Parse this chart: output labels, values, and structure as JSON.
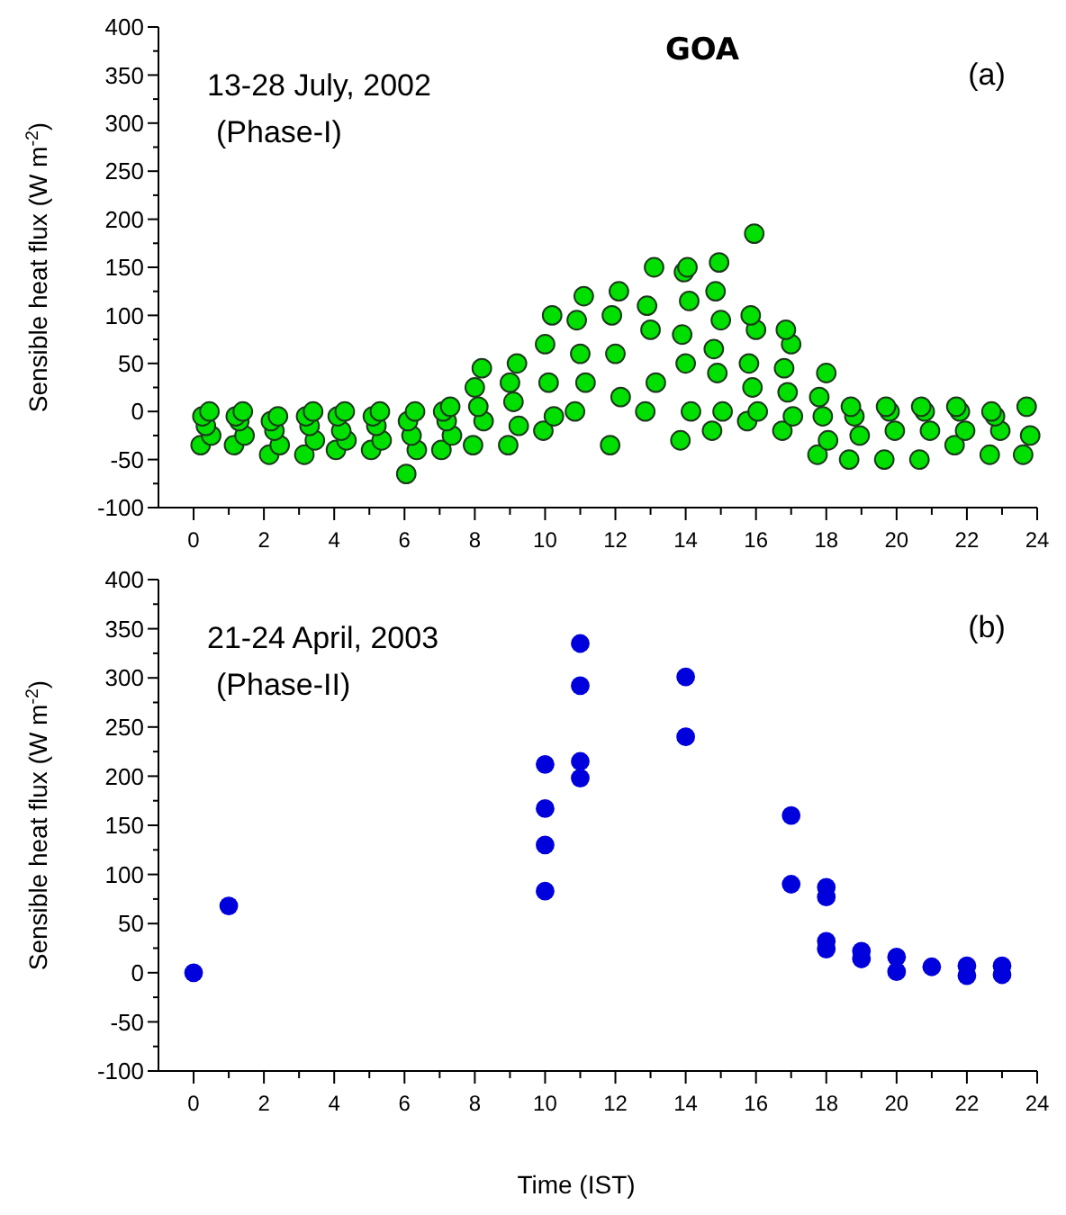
{
  "chart_data": [
    {
      "type": "scatter",
      "title": "GOA",
      "ylabel": "Sensible heat flux (W m$^{-2}$)",
      "annotations": [
        "13-28 July, 2002",
        "(Phase-I)",
        "(a)"
      ],
      "marker": "circle",
      "grid": false,
      "xlim": [
        -1,
        24
      ],
      "xticks": [
        0,
        {
          "value": 1,
          "label": null
        },
        2,
        {
          "value": 3,
          "label": null
        },
        4,
        {
          "value": 5,
          "label": null
        },
        6,
        {
          "value": 7,
          "label": null
        },
        8,
        {
          "value": 9,
          "label": null
        },
        10,
        {
          "value": 11,
          "label": null
        },
        12,
        {
          "value": 13,
          "label": null
        },
        14,
        {
          "value": 15,
          "label": null
        },
        16,
        {
          "value": 17,
          "label": null
        },
        18,
        {
          "value": 19,
          "label": null
        },
        20,
        {
          "value": 21,
          "label": null
        },
        22,
        {
          "value": 23,
          "label": null
        },
        24
      ],
      "ylim": [
        -100,
        400
      ],
      "yticks": [
        -100,
        {
          "value": -75,
          "label": null
        },
        -50,
        {
          "value": -25,
          "label": null
        },
        0,
        {
          "value": 25,
          "label": null
        },
        50,
        {
          "value": 75,
          "label": null
        },
        100,
        {
          "value": 125,
          "label": null
        },
        150,
        {
          "value": 175,
          "label": null
        },
        200,
        {
          "value": 225,
          "label": null
        },
        250,
        {
          "value": 275,
          "label": null
        },
        300,
        {
          "value": 325,
          "label": null
        },
        350,
        {
          "value": 375,
          "label": null
        },
        400
      ],
      "series": [
        {
          "color": "#00e000",
          "x": [
            0.2,
            0.5,
            0.35,
            0.25,
            0.45,
            1.15,
            1.45,
            1.3,
            1.2,
            1.4,
            2.15,
            2.45,
            2.3,
            2.2,
            2.4,
            3.15,
            3.45,
            3.3,
            3.2,
            3.4,
            4.05,
            4.35,
            4.2,
            4.1,
            4.3,
            5.05,
            5.35,
            5.2,
            5.1,
            5.3,
            6.05,
            6.35,
            6.2,
            6.1,
            6.3,
            7.05,
            7.35,
            7.2,
            7.1,
            7.3,
            7.95,
            8.25,
            8.1,
            8.0,
            8.2,
            8.95,
            9.25,
            9.1,
            9.0,
            9.2,
            9.95,
            10.25,
            10.1,
            10.0,
            10.2,
            10.85,
            11.15,
            11.0,
            10.9,
            11.1,
            11.85,
            12.15,
            12.0,
            11.9,
            12.1,
            12.85,
            13.15,
            13.0,
            12.9,
            13.1,
            13.85,
            14.15,
            14.0,
            13.9,
            14.1,
            13.95,
            14.05,
            14.75,
            15.05,
            14.9,
            14.8,
            15.0,
            14.85,
            14.95,
            15.75,
            16.05,
            15.9,
            15.8,
            16.0,
            15.85,
            15.95,
            16.75,
            17.05,
            16.9,
            16.8,
            17.0,
            16.85,
            17.75,
            18.05,
            17.9,
            17.8,
            18.0,
            18.65,
            18.95,
            18.8,
            18.7,
            19.65,
            19.95,
            19.8,
            19.7,
            20.65,
            20.95,
            20.8,
            20.7,
            21.65,
            21.95,
            21.8,
            21.7,
            22.65,
            22.95,
            22.8,
            22.7,
            23.6,
            23.8,
            23.7
          ],
          "values": [
            -35,
            -25,
            -15,
            -5,
            0,
            -35,
            -25,
            -10,
            -5,
            0,
            -45,
            -35,
            -20,
            -10,
            -5,
            -45,
            -30,
            -15,
            -5,
            0,
            -40,
            -30,
            -20,
            -5,
            0,
            -40,
            -30,
            -15,
            -5,
            0,
            -65,
            -40,
            -25,
            -10,
            0,
            -40,
            -25,
            -10,
            0,
            5,
            -35,
            -10,
            5,
            25,
            45,
            -35,
            -15,
            10,
            30,
            50,
            -20,
            -5,
            30,
            70,
            100,
            0,
            30,
            60,
            95,
            120,
            -35,
            15,
            60,
            100,
            125,
            0,
            30,
            85,
            110,
            150,
            -30,
            0,
            50,
            80,
            115,
            145,
            150,
            -20,
            0,
            40,
            65,
            95,
            125,
            155,
            -10,
            0,
            25,
            50,
            85,
            100,
            185,
            -20,
            -5,
            20,
            45,
            70,
            85,
            -45,
            -30,
            -5,
            15,
            40,
            -50,
            -25,
            -5,
            5,
            -50,
            -20,
            0,
            5,
            -50,
            -20,
            0,
            5,
            -35,
            -20,
            0,
            5,
            -45,
            -20,
            -5,
            0,
            -45,
            -25,
            5
          ]
        }
      ]
    },
    {
      "type": "scatter",
      "xlabel": "Time (IST)",
      "ylabel": "Sensible heat flux (W m$^{-2}$)",
      "annotations": [
        "21-24 April, 2003",
        "(Phase-II)",
        "(b)"
      ],
      "marker": "circle",
      "grid": false,
      "xlim": [
        -1,
        24
      ],
      "xticks": [
        0,
        {
          "value": 1,
          "label": null
        },
        2,
        {
          "value": 3,
          "label": null
        },
        4,
        {
          "value": 5,
          "label": null
        },
        6,
        {
          "value": 7,
          "label": null
        },
        8,
        {
          "value": 9,
          "label": null
        },
        10,
        {
          "value": 11,
          "label": null
        },
        12,
        {
          "value": 13,
          "label": null
        },
        14,
        {
          "value": 15,
          "label": null
        },
        16,
        {
          "value": 17,
          "label": null
        },
        18,
        {
          "value": 19,
          "label": null
        },
        20,
        {
          "value": 21,
          "label": null
        },
        22,
        {
          "value": 23,
          "label": null
        },
        24
      ],
      "ylim": [
        -100,
        400
      ],
      "yticks": [
        -100,
        {
          "value": -75,
          "label": null
        },
        -50,
        {
          "value": -25,
          "label": null
        },
        0,
        {
          "value": 25,
          "label": null
        },
        50,
        {
          "value": 75,
          "label": null
        },
        100,
        {
          "value": 125,
          "label": null
        },
        150,
        {
          "value": 175,
          "label": null
        },
        200,
        {
          "value": 225,
          "label": null
        },
        250,
        {
          "value": 275,
          "label": null
        },
        300,
        {
          "value": 325,
          "label": null
        },
        350,
        {
          "value": 375,
          "label": null
        },
        400
      ],
      "series": [
        {
          "color": "#0000dd",
          "x": [
            0,
            1,
            10,
            10,
            10,
            10,
            11,
            11,
            11,
            11,
            14,
            14,
            17,
            17,
            18,
            18,
            18,
            18,
            19,
            19,
            20,
            20,
            21,
            22,
            22,
            23,
            23
          ],
          "values": [
            0,
            68,
            212,
            167,
            130,
            83,
            335,
            292,
            215,
            198,
            301,
            240,
            160,
            90,
            87,
            77,
            32,
            24,
            22,
            14,
            16,
            1,
            6,
            7,
            -3,
            7,
            -2
          ]
        }
      ]
    }
  ]
}
